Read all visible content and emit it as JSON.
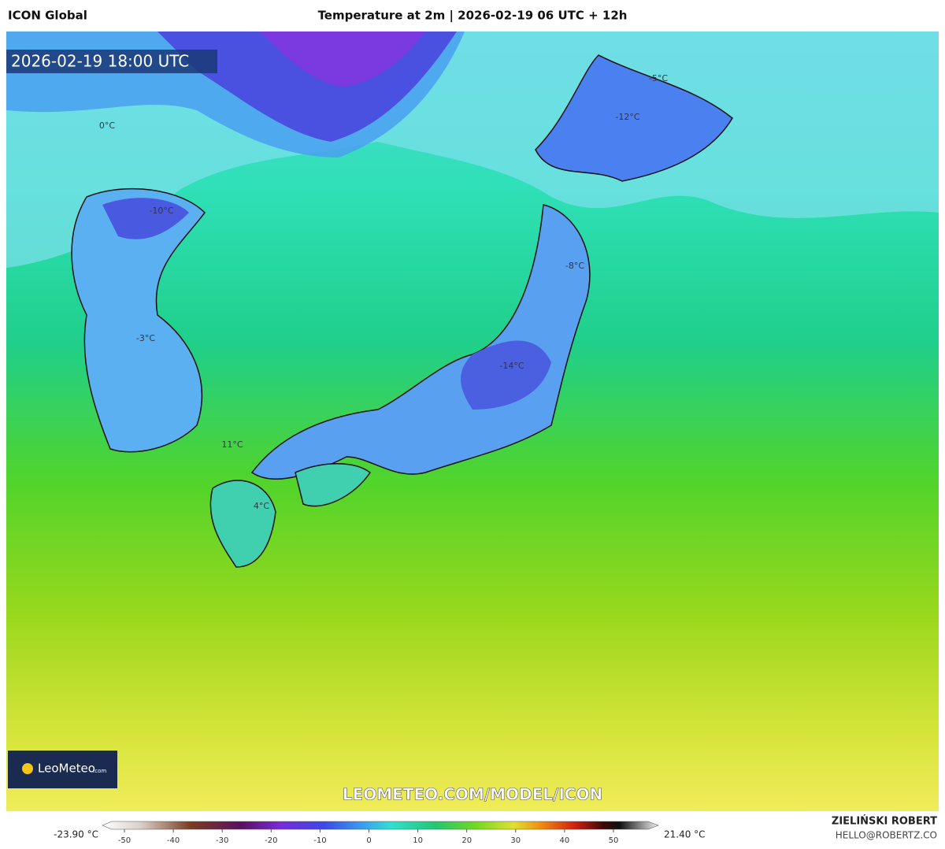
{
  "header": {
    "model": "ICON Global",
    "title": "Temperature at 2m | 2026-02-19 06 UTC + 12h"
  },
  "valid_time": "2026-02-19 18:00 UTC",
  "map_labels": [
    "0°C",
    "-10°C",
    "-3°C",
    "11°C",
    "4°C",
    "-5°C",
    "-12°C",
    "-8°C",
    "-14°C"
  ],
  "logo": {
    "name": "LeoMeteo",
    "suffix": ".com"
  },
  "watermark": "LEOMETEO.COM/MODEL/ICON",
  "colorbar": {
    "min_label": "-23.90 °C",
    "max_label": "21.40 °C",
    "ticks": [
      -50,
      -40,
      -30,
      -20,
      -10,
      0,
      10,
      20,
      30,
      40,
      50
    ]
  },
  "credit": {
    "author": "ZIELIŃSKI ROBERT",
    "email": "HELLO@ROBERTZ.CO"
  }
}
